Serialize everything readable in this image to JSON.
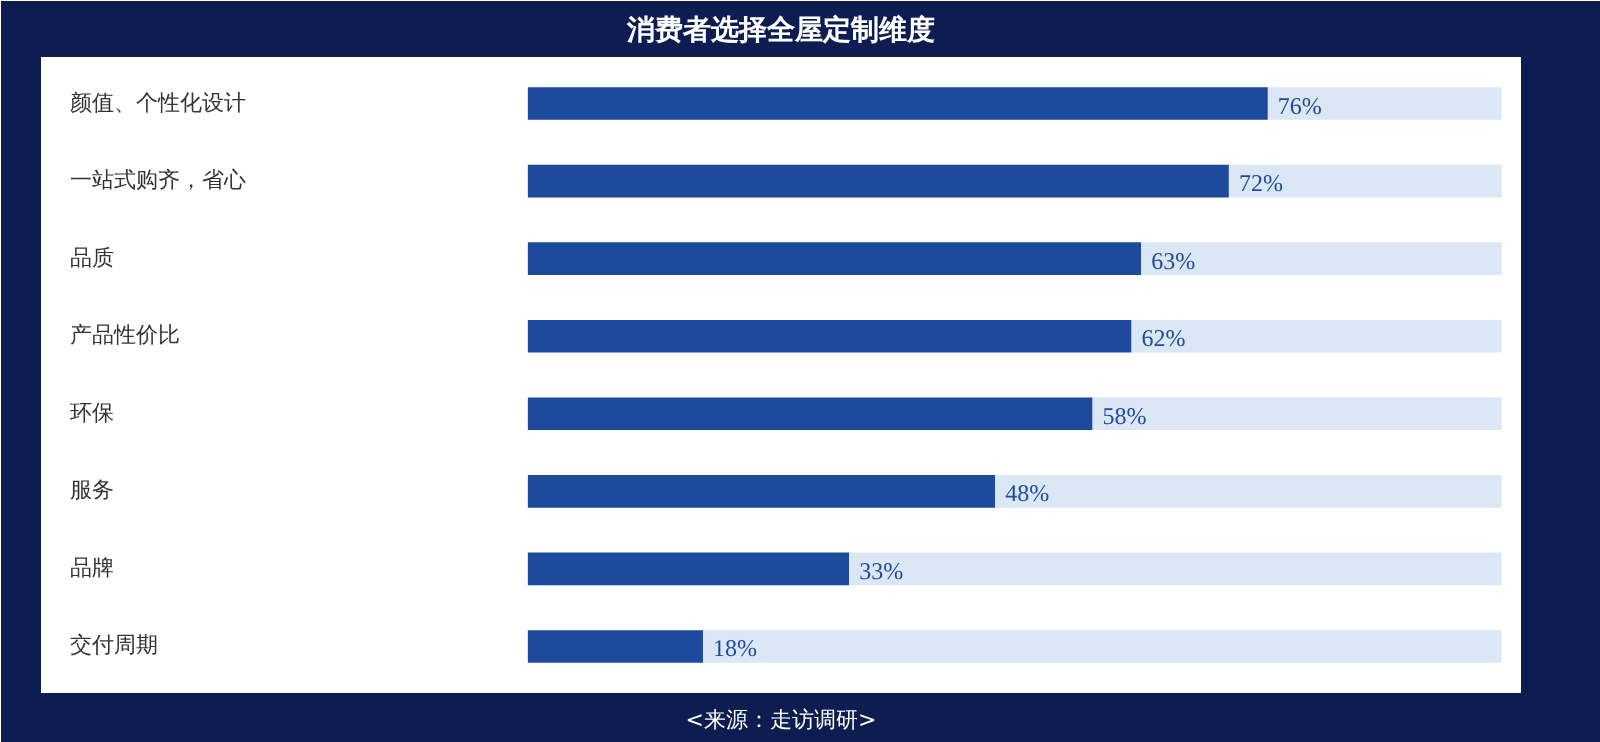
{
  "chart_data": {
    "type": "bar",
    "orientation": "horizontal",
    "stacked": true,
    "title": "消费者选择全屋定制维度",
    "categories": [
      "颜值、个性化设计",
      "一站式购齐，省心",
      "品质",
      "产品性价比",
      "环保",
      "服务",
      "品牌",
      "交付周期"
    ],
    "series": [
      {
        "color": "#1e4a9c",
        "values": [
          76,
          72,
          63,
          62,
          58,
          48,
          33,
          18
        ],
        "value_labels": [
          "76%",
          "72%",
          "63%",
          "62%",
          "58%",
          "48%",
          "33%",
          "18%"
        ]
      },
      {
        "color": "#dbe7f4",
        "values": [
          24,
          28,
          37,
          38,
          42,
          52,
          67,
          82
        ]
      }
    ],
    "grid": false,
    "tick_labels": "y",
    "annotations": [
      "<来源：走访调研>"
    ]
  }
}
